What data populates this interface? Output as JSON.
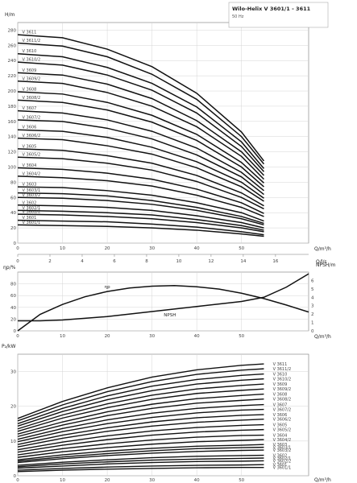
{
  "chart_data": [
    {
      "type": "line",
      "panel": "head",
      "title": "Wilo-Helix V 3601/1 - 3611",
      "subtitle": "50 Hz",
      "ylabel": "H/m",
      "xlabel": "Q/m³/h",
      "xlabel2": "Q/l/s",
      "xlim": [
        0,
        65
      ],
      "ylim": [
        0,
        290
      ],
      "xticks": [
        0,
        10,
        20,
        30,
        40,
        50
      ],
      "yticks": [
        0,
        20,
        40,
        60,
        80,
        100,
        120,
        140,
        160,
        180,
        200,
        220,
        240,
        260,
        280
      ],
      "x2ticks": [
        0,
        2,
        4,
        6,
        8,
        10,
        12,
        14,
        16
      ],
      "label_x": 1,
      "x": [
        0,
        10,
        20,
        30,
        40,
        50,
        55
      ],
      "series": [
        {
          "name": "V 3601/1",
          "values": [
            24,
            23,
            22,
            20,
            17,
            12,
            9
          ]
        },
        {
          "name": "V 3601",
          "values": [
            30,
            29,
            28,
            25,
            21,
            15,
            11
          ]
        },
        {
          "name": "V 3602/2",
          "values": [
            38,
            37,
            35,
            32,
            27,
            20,
            15
          ]
        },
        {
          "name": "V 3602/1",
          "values": [
            43,
            42,
            40,
            37,
            31,
            23,
            17
          ]
        },
        {
          "name": "V 3602",
          "values": [
            50,
            49,
            47,
            43,
            36,
            27,
            20
          ]
        },
        {
          "name": "V 3603/2",
          "values": [
            60,
            59,
            56,
            51,
            43,
            32,
            24
          ]
        },
        {
          "name": "V 3603/1",
          "values": [
            66,
            65,
            62,
            56,
            47,
            35,
            26
          ]
        },
        {
          "name": "V 3603",
          "values": [
            74,
            73,
            69,
            63,
            53,
            40,
            29
          ]
        },
        {
          "name": "V 3604/2",
          "values": [
            88,
            86,
            82,
            75,
            63,
            47,
            35
          ]
        },
        {
          "name": "V 3604",
          "values": [
            99,
            97,
            92,
            84,
            71,
            53,
            39
          ]
        },
        {
          "name": "V 3605/2",
          "values": [
            113,
            111,
            105,
            96,
            81,
            60,
            45
          ]
        },
        {
          "name": "V 3605",
          "values": [
            124,
            122,
            115,
            105,
            89,
            66,
            49
          ]
        },
        {
          "name": "V 3606/2",
          "values": [
            138,
            136,
            128,
            117,
            99,
            74,
            55
          ]
        },
        {
          "name": "V 3606",
          "values": [
            149,
            147,
            139,
            126,
            107,
            80,
            59
          ]
        },
        {
          "name": "V 3607/2",
          "values": [
            162,
            160,
            151,
            137,
            116,
            87,
            64
          ]
        },
        {
          "name": "V 3607",
          "values": [
            174,
            171,
            162,
            147,
            125,
            93,
            69
          ]
        },
        {
          "name": "V 3608/2",
          "values": [
            188,
            185,
            175,
            159,
            135,
            100,
            74
          ]
        },
        {
          "name": "V 3608",
          "values": [
            199,
            196,
            185,
            168,
            143,
            106,
            79
          ]
        },
        {
          "name": "V 3609/2",
          "values": [
            213,
            210,
            198,
            180,
            153,
            114,
            84
          ]
        },
        {
          "name": "V 3609",
          "values": [
            224,
            221,
            209,
            190,
            161,
            120,
            89
          ]
        },
        {
          "name": "V 3610/2",
          "values": [
            238,
            234,
            221,
            201,
            171,
            127,
            94
          ]
        },
        {
          "name": "V 3610",
          "values": [
            249,
            245,
            231,
            210,
            179,
            133,
            98
          ]
        },
        {
          "name": "V 3611/2",
          "values": [
            263,
            259,
            245,
            222,
            189,
            140,
            104
          ]
        },
        {
          "name": "V 3611",
          "values": [
            274,
            270,
            255,
            232,
            197,
            146,
            108
          ]
        }
      ]
    },
    {
      "type": "line",
      "panel": "efficiency-npsh",
      "ylabel": "ηp/%",
      "ylabel2": "NPSH/m",
      "xlabel": "Q/m³/h",
      "xlim": [
        0,
        65
      ],
      "ylim": [
        0,
        100
      ],
      "y2lim": [
        0,
        7
      ],
      "xticks": [
        0,
        10,
        20,
        30,
        40,
        50
      ],
      "yticks": [
        0,
        20,
        40,
        60,
        80
      ],
      "y2ticks": [
        0,
        1,
        2,
        3,
        4,
        5,
        6
      ],
      "series": [
        {
          "name": "ηp",
          "axis": "left",
          "x": [
            0,
            5,
            10,
            15,
            20,
            25,
            30,
            35,
            40,
            45,
            50,
            55,
            60,
            65
          ],
          "values": [
            0,
            28,
            45,
            58,
            67,
            73,
            76,
            77,
            75,
            71,
            64,
            55,
            44,
            32
          ]
        },
        {
          "name": "NPSH",
          "axis": "right",
          "x": [
            0,
            5,
            10,
            15,
            20,
            25,
            30,
            35,
            40,
            45,
            50,
            55,
            60,
            65
          ],
          "values": [
            1.2,
            1.2,
            1.3,
            1.5,
            1.7,
            2.0,
            2.3,
            2.6,
            2.9,
            3.2,
            3.5,
            4.0,
            5.2,
            6.8
          ]
        }
      ]
    },
    {
      "type": "line",
      "panel": "power",
      "ylabel": "P₂/kW",
      "xlabel": "Q/m³/h",
      "xlim": [
        0,
        65
      ],
      "ylim": [
        0,
        35
      ],
      "xticks": [
        0,
        10,
        20,
        30,
        40,
        50
      ],
      "yticks": [
        0,
        10,
        20,
        30
      ],
      "label_x": 57,
      "x": [
        0,
        10,
        20,
        30,
        40,
        50,
        55
      ],
      "series": [
        {
          "name": "V 3601/1",
          "values": [
            1.2,
            1.6,
            1.9,
            2.1,
            2.3,
            2.4,
            2.4
          ]
        },
        {
          "name": "V 3601",
          "values": [
            1.6,
            2.1,
            2.5,
            2.8,
            3.0,
            3.1,
            3.2
          ]
        },
        {
          "name": "V 3602/2",
          "values": [
            2.2,
            2.8,
            3.4,
            3.8,
            4.1,
            4.2,
            4.3
          ]
        },
        {
          "name": "V 3602/1",
          "values": [
            2.6,
            3.4,
            4.0,
            4.5,
            4.8,
            5.0,
            5.1
          ]
        },
        {
          "name": "V 3602",
          "values": [
            3.0,
            3.9,
            4.6,
            5.2,
            5.6,
            5.8,
            5.9
          ]
        },
        {
          "name": "V 3603/2",
          "values": [
            3.8,
            4.9,
            5.8,
            6.5,
            7.0,
            7.3,
            7.4
          ]
        },
        {
          "name": "V 3603/1",
          "values": [
            4.2,
            5.4,
            6.4,
            7.2,
            7.8,
            8.1,
            8.2
          ]
        },
        {
          "name": "V 3603",
          "values": [
            4.6,
            6.0,
            7.1,
            7.9,
            8.5,
            8.8,
            9.0
          ]
        },
        {
          "name": "V 3604/2",
          "values": [
            5.3,
            6.9,
            8.1,
            9.1,
            9.8,
            10.2,
            10.4
          ]
        },
        {
          "name": "V 3604",
          "values": [
            6.0,
            7.8,
            9.2,
            10.3,
            11.1,
            11.6,
            11.7
          ]
        },
        {
          "name": "V 3605/2",
          "values": [
            6.8,
            8.8,
            10.4,
            11.7,
            12.6,
            13.1,
            13.3
          ]
        },
        {
          "name": "V 3605",
          "values": [
            7.5,
            9.7,
            11.5,
            12.9,
            13.9,
            14.5,
            14.7
          ]
        },
        {
          "name": "V 3606/2",
          "values": [
            8.3,
            10.8,
            12.8,
            14.3,
            15.4,
            16.0,
            16.3
          ]
        },
        {
          "name": "V 3606",
          "values": [
            9.0,
            11.7,
            13.8,
            15.5,
            16.7,
            17.4,
            17.6
          ]
        },
        {
          "name": "V 3607/2",
          "values": [
            9.8,
            12.7,
            15.0,
            16.8,
            18.1,
            18.9,
            19.1
          ]
        },
        {
          "name": "V 3607",
          "values": [
            10.5,
            13.6,
            16.1,
            18.0,
            19.4,
            20.2,
            20.5
          ]
        },
        {
          "name": "V 3608/2",
          "values": [
            11.3,
            14.6,
            17.3,
            19.4,
            20.9,
            21.7,
            22.1
          ]
        },
        {
          "name": "V 3608",
          "values": [
            12.0,
            15.5,
            18.4,
            20.6,
            22.2,
            23.1,
            23.5
          ]
        },
        {
          "name": "V 3609/2",
          "values": [
            12.8,
            16.6,
            19.6,
            22.0,
            23.7,
            24.6,
            25.0
          ]
        },
        {
          "name": "V 3609",
          "values": [
            13.5,
            17.5,
            20.7,
            23.2,
            25.0,
            26.0,
            26.4
          ]
        },
        {
          "name": "V 3610/2",
          "values": [
            14.3,
            18.5,
            21.9,
            24.5,
            26.4,
            27.5,
            27.9
          ]
        },
        {
          "name": "V 3610",
          "values": [
            15.0,
            19.4,
            23.0,
            25.8,
            27.7,
            28.9,
            29.3
          ]
        },
        {
          "name": "V 3611/2",
          "values": [
            15.8,
            20.4,
            24.2,
            27.1,
            29.2,
            30.4,
            30.8
          ]
        },
        {
          "name": "V 3611",
          "values": [
            16.5,
            21.4,
            25.3,
            28.4,
            30.5,
            31.8,
            32.2
          ]
        }
      ]
    }
  ]
}
